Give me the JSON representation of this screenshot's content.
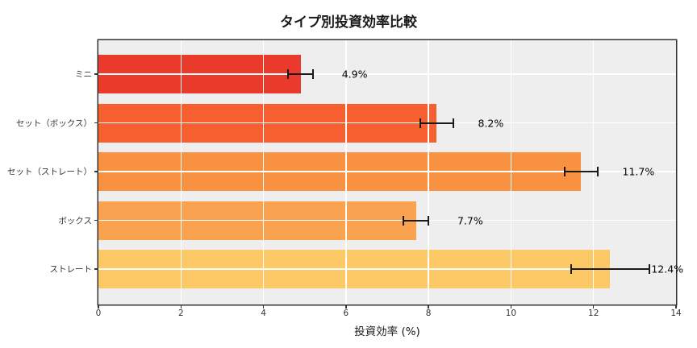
{
  "chart_data": {
    "type": "bar",
    "orientation": "horizontal",
    "title": "タイプ別投資効率比較",
    "xlabel": "投資効率 (%)",
    "ylabel": "",
    "categories": [
      "ミニ",
      "セット（ボックス）",
      "セット（ストレート）",
      "ボックス",
      "ストレート"
    ],
    "values": [
      4.9,
      8.2,
      11.7,
      7.7,
      12.4
    ],
    "errors": [
      0.3,
      0.4,
      0.4,
      0.3,
      0.95
    ],
    "value_labels": [
      "4.9%",
      "8.2%",
      "11.7%",
      "7.7%",
      "12.4%"
    ],
    "bar_colors": [
      "#e93a2b",
      "#f65f30",
      "#f89242",
      "#f9a350",
      "#fcc966"
    ],
    "xlim": [
      0,
      14
    ],
    "xticks": [
      0,
      2,
      4,
      6,
      8,
      10,
      12,
      14
    ],
    "xtick_labels": [
      "0",
      "2",
      "4",
      "6",
      "8",
      "10",
      "12",
      "14"
    ],
    "grid": true,
    "legend": "none",
    "plot_bg_color": "#eeeeee",
    "grid_color": "#ffffff",
    "border_color": "#333333",
    "error_bar_color": "#1a1a1a"
  }
}
